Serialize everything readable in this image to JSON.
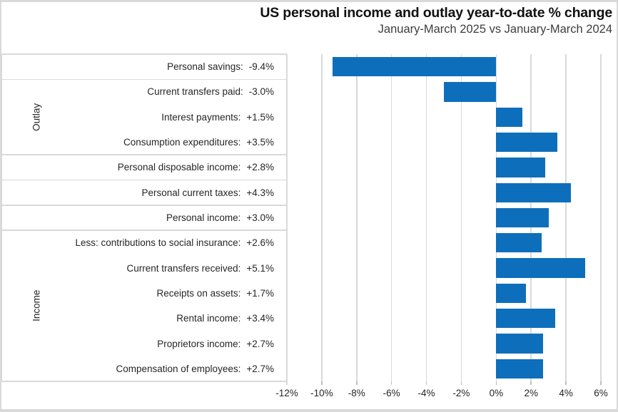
{
  "title": "US personal income and outlay year-to-date % change",
  "subtitle": "January-March 2025 vs January-March 2024",
  "chart_data": {
    "type": "bar",
    "orientation": "horizontal",
    "title": "US personal income and outlay year-to-date % change",
    "subtitle": "January-March 2025 vs January-March 2024",
    "categories": [
      "Personal savings",
      "Current transfers paid",
      "Interest payments",
      "Consumption expenditures",
      "Personal disposable income",
      "Personal current taxes",
      "Personal income",
      "Less: contributions to social insurance",
      "Current transfers received",
      "Receipts on assets",
      "Rental income",
      "Proprietors income",
      "Compensation of employees"
    ],
    "values": [
      -9.4,
      -3.0,
      1.5,
      3.5,
      2.8,
      4.3,
      3.0,
      2.6,
      5.1,
      1.7,
      3.4,
      2.7,
      2.7
    ],
    "value_labels": [
      "-9.4%",
      "-3.0%",
      "+1.5%",
      "+3.5%",
      "+2.8%",
      "+4.3%",
      "+3.0%",
      "+2.6%",
      "+5.1%",
      "+1.7%",
      "+3.4%",
      "+2.7%",
      "+2.7%"
    ],
    "row_groups": [
      {
        "label": "",
        "rows": 1
      },
      {
        "label": "Outlay",
        "rows": 3
      },
      {
        "label": "",
        "rows": 1
      },
      {
        "label": "",
        "rows": 1
      },
      {
        "label": "",
        "rows": 1
      },
      {
        "label": "Income",
        "rows": 6
      }
    ],
    "x_ticks": [
      "-12%",
      "-10%",
      "-8%",
      "-6%",
      "-4%",
      "-2%",
      "0%",
      "2%",
      "4%",
      "6%"
    ],
    "x_tick_values": [
      -12,
      -10,
      -8,
      -6,
      -4,
      -2,
      0,
      2,
      4,
      6
    ],
    "xlim": [
      -12,
      6
    ],
    "ylabel": "",
    "xlabel": "",
    "legend": "none",
    "grid": "vertical",
    "bar_color": "#0d6fbc",
    "gridline_color": "#d9d9d9",
    "text_color": "#262626"
  }
}
